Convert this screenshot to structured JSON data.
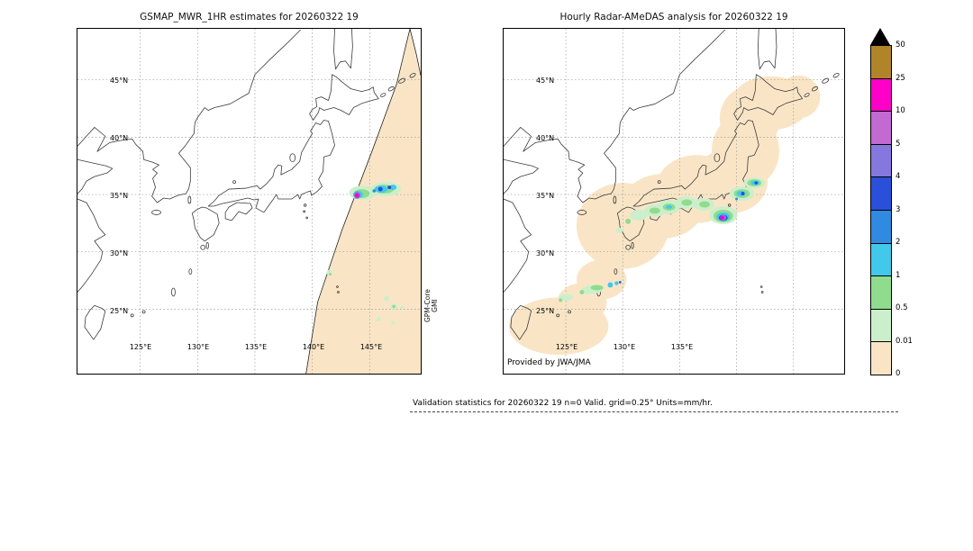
{
  "left_panel": {
    "title": "GSMAP_MWR_1HR estimates for 20260322 19",
    "source_label": {
      "line1": "GPM-Core",
      "line2": "GMI"
    },
    "lat_ticks": [
      "45°N",
      "40°N",
      "35°N",
      "30°N",
      "25°N"
    ],
    "lon_ticks": [
      "125°E",
      "130°E",
      "135°E",
      "140°E",
      "145°E"
    ]
  },
  "right_panel": {
    "title": "Hourly Radar-AMeDAS analysis for 20260322 19",
    "credit": "Provided by JWA/JMA",
    "lat_ticks": [
      "45°N",
      "40°N",
      "35°N",
      "30°N",
      "25°N"
    ],
    "lon_ticks": [
      "125°E",
      "130°E",
      "135°E"
    ]
  },
  "colorbar": {
    "labels_top_to_bottom": [
      "50",
      "25",
      "10",
      "5",
      "4",
      "3",
      "2",
      "1",
      "0.5",
      "0.01",
      "0"
    ],
    "colors_top_to_bottom": [
      "#b08428",
      "#ff00c8",
      "#c06ad2",
      "#8577dd",
      "#2a4fd8",
      "#2f8ae0",
      "#41c8ea",
      "#8fdc8f",
      "#ccefcb",
      "#f9e5c6"
    ],
    "over_range_color": "#000000"
  },
  "footer": {
    "stats_text": "Validation statistics for 20260322 19  n=0 Valid. grid=0.25° Units=mm/hr."
  },
  "chart_data": {
    "type": "heatmap",
    "subtype": "geographic_precipitation_comparison",
    "units": "mm/hr",
    "panels": [
      {
        "title": "GSMAP_MWR_1HR estimates for 20260322 19",
        "instrument": "GPM-Core GMI",
        "lon_range_deg_e": [
          119.5,
          149.5
        ],
        "lat_range_deg_n": [
          19.5,
          49.5
        ],
        "lon_ticks_deg_e": [
          125,
          130,
          135,
          140,
          145
        ],
        "lat_ticks_deg_n": [
          25,
          30,
          35,
          40,
          45
        ],
        "coverage": "diagonal satellite swath (zero-rain shown pale tan) over the Pacific east of Japan, from top edge near 148E,49N down to bottom near 146E,20N",
        "features": [
          {
            "lon": 144.5,
            "lat": 35.0,
            "desc": "rain cluster 0.5-3 mm/hr (green/cyan/blue) with small >10-25 mm/hr purple-magenta core at its west end near 144E"
          },
          {
            "lon": 146.5,
            "lat": 26.5,
            "desc": "scattered light-rain specks 0.01-1 mm/hr"
          },
          {
            "lon": 141.5,
            "lat": 28.2,
            "desc": "isolated light-rain speck 0.01-1 mm/hr"
          }
        ]
      },
      {
        "title": "Hourly Radar-AMeDAS analysis for 20260322 19",
        "source": "JWA/JMA",
        "lon_range_deg_e": [
          119.5,
          149.5
        ],
        "lat_range_deg_n": [
          19.5,
          49.5
        ],
        "lon_ticks_deg_e": [
          125,
          130,
          135
        ],
        "lat_ticks_deg_n": [
          25,
          30,
          35,
          40,
          45
        ],
        "coverage": "radar coverage union (zero-rain shown pale tan) along entire Japanese archipelago from Kyushu to eastern Hokkaido plus southwest island chain near Okinawa",
        "features": [
          {
            "lon": 133.5,
            "lat": 33.8,
            "desc": "light rain band 0.01-2 mm/hr along Seto/Shikoku coast"
          },
          {
            "lon": 138.8,
            "lat": 32.9,
            "desc": "rain core up to >10-25 mm/hr (magenta) surrounded by 1-5 mm/hr cyan/blue ring south of Kii/Enshu coast"
          },
          {
            "lon": 140.5,
            "lat": 35.9,
            "desc": "cyan/blue patches 1-4 mm/hr near Kanto east coast"
          },
          {
            "lon": 127.0,
            "lat": 26.5,
            "desc": "light rain 0.01-3 mm/hr along Okinawa/Sakishima island chain"
          }
        ]
      }
    ],
    "colorbar": {
      "levels_mm_hr": [
        0,
        0.01,
        0.5,
        1,
        2,
        3,
        4,
        5,
        10,
        25,
        50
      ],
      "colors_low_to_high": [
        "#f9e5c6",
        "#ccefcb",
        "#8fdc8f",
        "#41c8ea",
        "#2f8ae0",
        "#2a4fd8",
        "#8577dd",
        "#c06ad2",
        "#ff00c8",
        "#b08428"
      ],
      "over_50_color": "#000000 (triangle)"
    },
    "stats": {
      "n": 0,
      "valid_grid": "0.25°",
      "units": "mm/hr"
    }
  }
}
